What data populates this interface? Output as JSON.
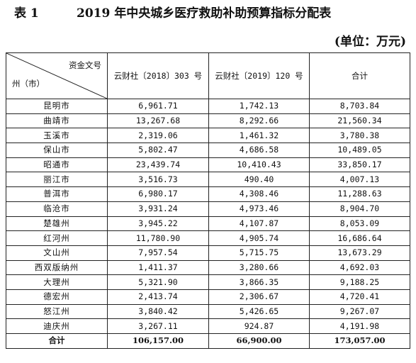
{
  "title": {
    "label": "表 1",
    "text": "2019 年中央城乡医疗救助补助预算指标分配表"
  },
  "unit": "(单位：万元)",
  "table": {
    "header": {
      "corner_top": "资金文号",
      "corner_bottom": "州（市）",
      "columns": [
        "云财社〔2018〕303 号",
        "云财社〔2019〕120 号",
        "合计"
      ]
    },
    "rows": [
      {
        "name": "昆明市",
        "a": "6,961.71",
        "b": "1,742.13",
        "total": "8,703.84"
      },
      {
        "name": "曲靖市",
        "a": "13,267.68",
        "b": "8,292.66",
        "total": "21,560.34"
      },
      {
        "name": "玉溪市",
        "a": "2,319.06",
        "b": "1,461.32",
        "total": "3,780.38"
      },
      {
        "name": "保山市",
        "a": "5,802.47",
        "b": "4,686.58",
        "total": "10,489.05"
      },
      {
        "name": "昭通市",
        "a": "23,439.74",
        "b": "10,410.43",
        "total": "33,850.17"
      },
      {
        "name": "丽江市",
        "a": "3,516.73",
        "b": "490.40",
        "total": "4,007.13"
      },
      {
        "name": "普洱市",
        "a": "6,980.17",
        "b": "4,308.46",
        "total": "11,288.63"
      },
      {
        "name": "临沧市",
        "a": "3,931.24",
        "b": "4,973.46",
        "total": "8,904.70"
      },
      {
        "name": "楚雄州",
        "a": "3,945.22",
        "b": "4,107.87",
        "total": "8,053.09"
      },
      {
        "name": "红河州",
        "a": "11,780.90",
        "b": "4,905.74",
        "total": "16,686.64"
      },
      {
        "name": "文山州",
        "a": "7,957.54",
        "b": "5,715.75",
        "total": "13,673.29"
      },
      {
        "name": "西双版纳州",
        "a": "1,411.37",
        "b": "3,280.66",
        "total": "4,692.03"
      },
      {
        "name": "大理州",
        "a": "5,321.90",
        "b": "3,866.35",
        "total": "9,188.25"
      },
      {
        "name": "德宏州",
        "a": "2,413.74",
        "b": "2,306.67",
        "total": "4,720.41"
      },
      {
        "name": "怒江州",
        "a": "3,840.42",
        "b": "5,426.65",
        "total": "9,267.07"
      },
      {
        "name": "迪庆州",
        "a": "3,267.11",
        "b": "924.87",
        "total": "4,191.98"
      }
    ],
    "total_row": {
      "name": "合计",
      "a": "106,157.00",
      "b": "66,900.00",
      "total": "173,057.00"
    }
  }
}
